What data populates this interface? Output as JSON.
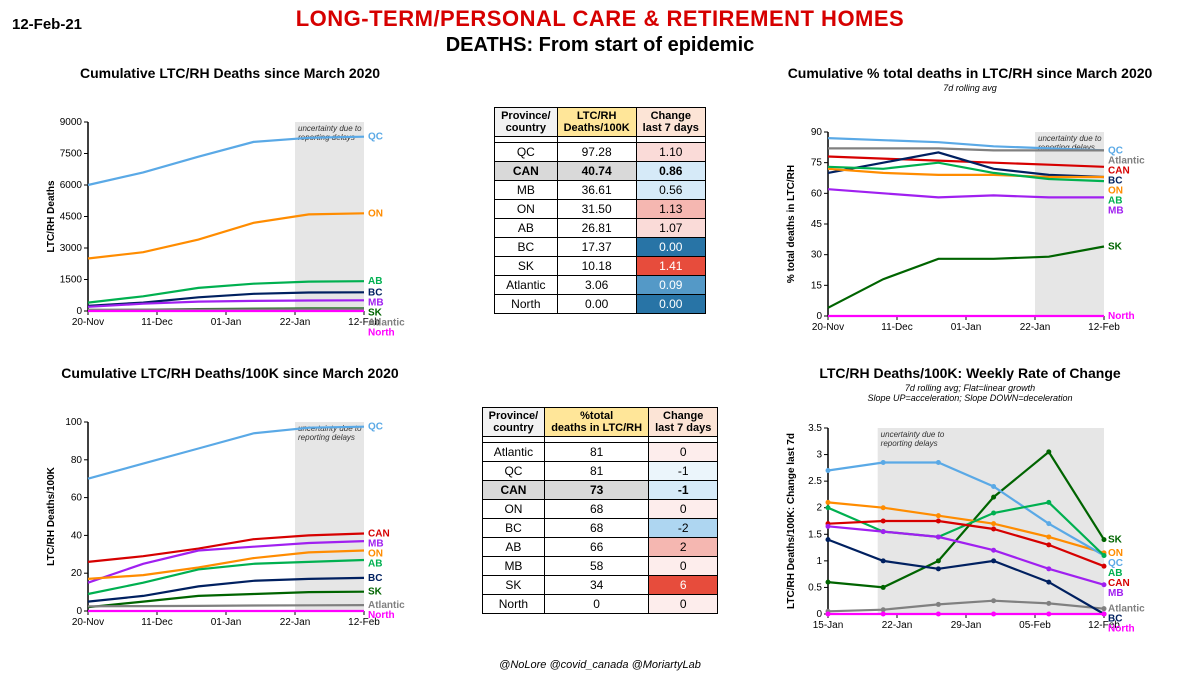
{
  "date_stamp": "12-Feb-21",
  "main_title": "LONG-TERM/PERSONAL CARE & RETIREMENT HOMES",
  "subtitle": "DEATHS: From start of epidemic",
  "credits": "@NoLore @covid_canada @MoriartyLab",
  "colors": {
    "QC": "#5aa9e6",
    "ON": "#ff8c00",
    "CAN": "#d60000",
    "AB": "#00b050",
    "BC": "#002060",
    "MB": "#a020f0",
    "SK": "#006400",
    "Atlantic": "#808080",
    "North": "#ff00ff",
    "uncertainty": "#e6e6e6"
  },
  "x_dates": {
    "ticks": [
      "20-Nov",
      "11-Dec",
      "01-Jan",
      "22-Jan",
      "12-Feb"
    ],
    "positions": [
      0,
      0.25,
      0.5,
      0.75,
      1.0
    ]
  },
  "chart1": {
    "title": "Cumulative LTC/RH Deaths since March 2020",
    "ylabel": "LTC/RH Deaths",
    "ylim": [
      0,
      9000
    ],
    "yticks": [
      0,
      1500,
      3000,
      4500,
      6000,
      7500,
      9000
    ],
    "uncertainty_note": "uncertainty due to reporting delays",
    "series": [
      {
        "key": "QC",
        "label": "QC",
        "y": [
          6000,
          6600,
          7350,
          8050,
          8250,
          8300
        ]
      },
      {
        "key": "ON",
        "label": "ON",
        "y": [
          2500,
          2800,
          3400,
          4200,
          4600,
          4650
        ]
      },
      {
        "key": "AB",
        "label": "AB",
        "y": [
          400,
          700,
          1100,
          1300,
          1400,
          1420
        ]
      },
      {
        "key": "BC",
        "label": "BC",
        "y": [
          250,
          400,
          650,
          820,
          880,
          890
        ]
      },
      {
        "key": "MB",
        "label": "MB",
        "y": [
          200,
          350,
          450,
          480,
          500,
          510
        ]
      },
      {
        "key": "SK",
        "label": "SK",
        "y": [
          30,
          60,
          90,
          110,
          118,
          120
        ]
      },
      {
        "key": "Atlantic",
        "label": "Atlantic",
        "y": [
          60,
          62,
          65,
          70,
          74,
          75
        ]
      },
      {
        "key": "North",
        "label": "North",
        "y": [
          0,
          0,
          0,
          0,
          0,
          0
        ]
      }
    ]
  },
  "chart2": {
    "title": "Cumulative LTC/RH Deaths/100K since March 2020",
    "ylabel": "LTC/RH Deaths/100K",
    "ylim": [
      0,
      100
    ],
    "yticks": [
      0,
      20,
      40,
      60,
      80,
      100
    ],
    "uncertainty_note": "uncertainty due to reporting delays",
    "series": [
      {
        "key": "QC",
        "label": "QC",
        "y": [
          70,
          78,
          86,
          94,
          97,
          97.5
        ]
      },
      {
        "key": "CAN",
        "label": "CAN",
        "y": [
          26,
          29,
          33,
          38,
          40,
          41
        ]
      },
      {
        "key": "MB",
        "label": "MB",
        "y": [
          15,
          25,
          32,
          34,
          36,
          37
        ]
      },
      {
        "key": "ON",
        "label": "ON",
        "y": [
          17,
          19,
          23,
          28,
          31,
          32
        ]
      },
      {
        "key": "AB",
        "label": "AB",
        "y": [
          9,
          15,
          22,
          25,
          26,
          27
        ]
      },
      {
        "key": "BC",
        "label": "BC",
        "y": [
          5,
          8,
          13,
          16,
          17,
          17.5
        ]
      },
      {
        "key": "SK",
        "label": "SK",
        "y": [
          2,
          5,
          8,
          9,
          10,
          10.2
        ]
      },
      {
        "key": "Atlantic",
        "label": "Atlantic",
        "y": [
          2.5,
          2.6,
          2.7,
          2.9,
          3,
          3.1
        ]
      },
      {
        "key": "North",
        "label": "North",
        "y": [
          0,
          0,
          0,
          0,
          0,
          0
        ]
      }
    ]
  },
  "chart3": {
    "title": "Cumulative % total deaths in LTC/RH since March 2020",
    "subtitle": "7d rolling avg",
    "ylabel": "% total deaths in LTC/RH",
    "ylim": [
      0,
      90
    ],
    "yticks": [
      0,
      15,
      30,
      45,
      60,
      75,
      90
    ],
    "uncertainty_note": "uncertainty due to reporting delays",
    "series": [
      {
        "key": "QC",
        "label": "QC",
        "y": [
          87,
          86,
          85,
          83,
          82,
          81
        ]
      },
      {
        "key": "Atlantic",
        "label": "Atlantic",
        "y": [
          82,
          82,
          82,
          81,
          81,
          81
        ]
      },
      {
        "key": "CAN",
        "label": "CAN",
        "y": [
          78,
          77,
          76,
          75,
          74,
          73
        ]
      },
      {
        "key": "BC",
        "label": "BC",
        "y": [
          70,
          75,
          80,
          72,
          69,
          68
        ]
      },
      {
        "key": "ON",
        "label": "ON",
        "y": [
          72,
          70,
          69,
          69,
          68,
          68
        ]
      },
      {
        "key": "AB",
        "label": "AB",
        "y": [
          73,
          72,
          75,
          70,
          67,
          66
        ]
      },
      {
        "key": "MB",
        "label": "MB",
        "y": [
          62,
          60,
          58,
          59,
          58,
          58
        ]
      },
      {
        "key": "SK",
        "label": "SK",
        "y": [
          4,
          18,
          28,
          28,
          29,
          34
        ]
      },
      {
        "key": "North",
        "label": "North",
        "y": [
          0,
          0,
          0,
          0,
          0,
          0
        ]
      }
    ]
  },
  "chart4": {
    "title": "LTC/RH Deaths/100K: Weekly Rate of Change",
    "subtitle": "7d rolling avg; Flat=linear growth\nSlope UP=acceleration; Slope DOWN=deceleration",
    "ylabel": "LTC/RH Deaths/100K: Change last 7d",
    "ylim": [
      0,
      3.5
    ],
    "yticks": [
      0,
      0.5,
      1.0,
      1.5,
      2.0,
      2.5,
      3.0,
      3.5
    ],
    "x_ticks": [
      "15-Jan",
      "22-Jan",
      "29-Jan",
      "05-Feb",
      "12-Feb"
    ],
    "uncertainty_note": "uncertainty due to reporting delays",
    "uncertainty_x": [
      0.18,
      1.0
    ],
    "markers": true,
    "series": [
      {
        "key": "SK",
        "label": "SK",
        "y": [
          0.6,
          0.5,
          1.0,
          2.2,
          3.05,
          1.4
        ]
      },
      {
        "key": "ON",
        "label": "ON",
        "y": [
          2.1,
          2.0,
          1.85,
          1.7,
          1.45,
          1.15
        ]
      },
      {
        "key": "QC",
        "label": "QC",
        "y": [
          2.7,
          2.85,
          2.85,
          2.4,
          1.7,
          1.1
        ]
      },
      {
        "key": "AB",
        "label": "AB",
        "y": [
          2.0,
          1.55,
          1.45,
          1.9,
          2.1,
          1.1
        ]
      },
      {
        "key": "CAN",
        "label": "CAN",
        "y": [
          1.7,
          1.75,
          1.75,
          1.6,
          1.3,
          0.9
        ]
      },
      {
        "key": "MB",
        "label": "MB",
        "y": [
          1.65,
          1.55,
          1.45,
          1.2,
          0.85,
          0.55
        ]
      },
      {
        "key": "Atlantic",
        "label": "Atlantic",
        "y": [
          0.05,
          0.08,
          0.18,
          0.25,
          0.2,
          0.1
        ]
      },
      {
        "key": "BC",
        "label": "BC",
        "y": [
          1.4,
          1.0,
          0.85,
          1.0,
          0.6,
          0.0
        ]
      },
      {
        "key": "North",
        "label": "North",
        "y": [
          0,
          0,
          0,
          0,
          0,
          0
        ]
      }
    ]
  },
  "table1": {
    "headers": [
      "Province/ country",
      "LTC/RH Deaths/100K",
      "Change last 7 days"
    ],
    "rows": [
      {
        "prov": "QC",
        "val": "97.28",
        "chg": "1.10",
        "chg_color": "#fadbd8"
      },
      {
        "prov": "CAN",
        "val": "40.74",
        "chg": "0.86",
        "chg_color": "#d6eaf8",
        "bold": true
      },
      {
        "prov": "MB",
        "val": "36.61",
        "chg": "0.56",
        "chg_color": "#d6eaf8"
      },
      {
        "prov": "ON",
        "val": "31.50",
        "chg": "1.13",
        "chg_color": "#f5b7b1"
      },
      {
        "prov": "AB",
        "val": "26.81",
        "chg": "1.07",
        "chg_color": "#fadbd8"
      },
      {
        "prov": "BC",
        "val": "17.37",
        "chg": "0.00",
        "chg_color": "#2874a6",
        "chg_tc": "#fff"
      },
      {
        "prov": "SK",
        "val": "10.18",
        "chg": "1.41",
        "chg_color": "#e74c3c",
        "chg_tc": "#fff"
      },
      {
        "prov": "Atlantic",
        "val": "3.06",
        "chg": "0.09",
        "chg_color": "#5499c7",
        "chg_tc": "#fff"
      },
      {
        "prov": "North",
        "val": "0.00",
        "chg": "0.00",
        "chg_color": "#2874a6",
        "chg_tc": "#fff"
      }
    ]
  },
  "table2": {
    "headers": [
      "Province/ country",
      "%total deaths in LTC/RH",
      "Change last 7 days"
    ],
    "rows": [
      {
        "prov": "Atlantic",
        "val": "81",
        "chg": "0",
        "chg_color": "#fdedec"
      },
      {
        "prov": "QC",
        "val": "81",
        "chg": "-1",
        "chg_color": "#ebf5fb"
      },
      {
        "prov": "CAN",
        "val": "73",
        "chg": "-1",
        "chg_color": "#d6eaf8",
        "bold": true
      },
      {
        "prov": "ON",
        "val": "68",
        "chg": "0",
        "chg_color": "#fdedec"
      },
      {
        "prov": "BC",
        "val": "68",
        "chg": "-2",
        "chg_color": "#aed6f1"
      },
      {
        "prov": "AB",
        "val": "66",
        "chg": "2",
        "chg_color": "#f5b7b1"
      },
      {
        "prov": "MB",
        "val": "58",
        "chg": "0",
        "chg_color": "#fdedec"
      },
      {
        "prov": "SK",
        "val": "34",
        "chg": "6",
        "chg_color": "#e74c3c",
        "chg_tc": "#fff"
      },
      {
        "prov": "North",
        "val": "0",
        "chg": "0",
        "chg_color": "#fdedec"
      }
    ]
  }
}
